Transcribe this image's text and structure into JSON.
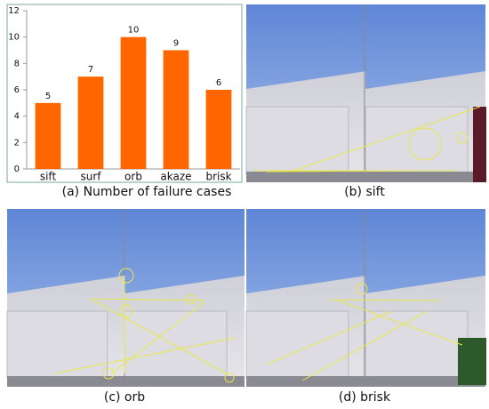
{
  "chart_data": {
    "type": "bar",
    "title": "(a) Number of failure cases",
    "categories": [
      "sift",
      "surf",
      "orb",
      "akaze",
      "brisk"
    ],
    "values": [
      5,
      7,
      10,
      9,
      6
    ],
    "color": "#ff6600",
    "ylim": [
      0,
      12
    ],
    "yticks": [
      0,
      2,
      4,
      6,
      8,
      10,
      12
    ],
    "grid": false
  },
  "panels": [
    "(b) sift",
    "(c) orb",
    "(d) brisk"
  ]
}
